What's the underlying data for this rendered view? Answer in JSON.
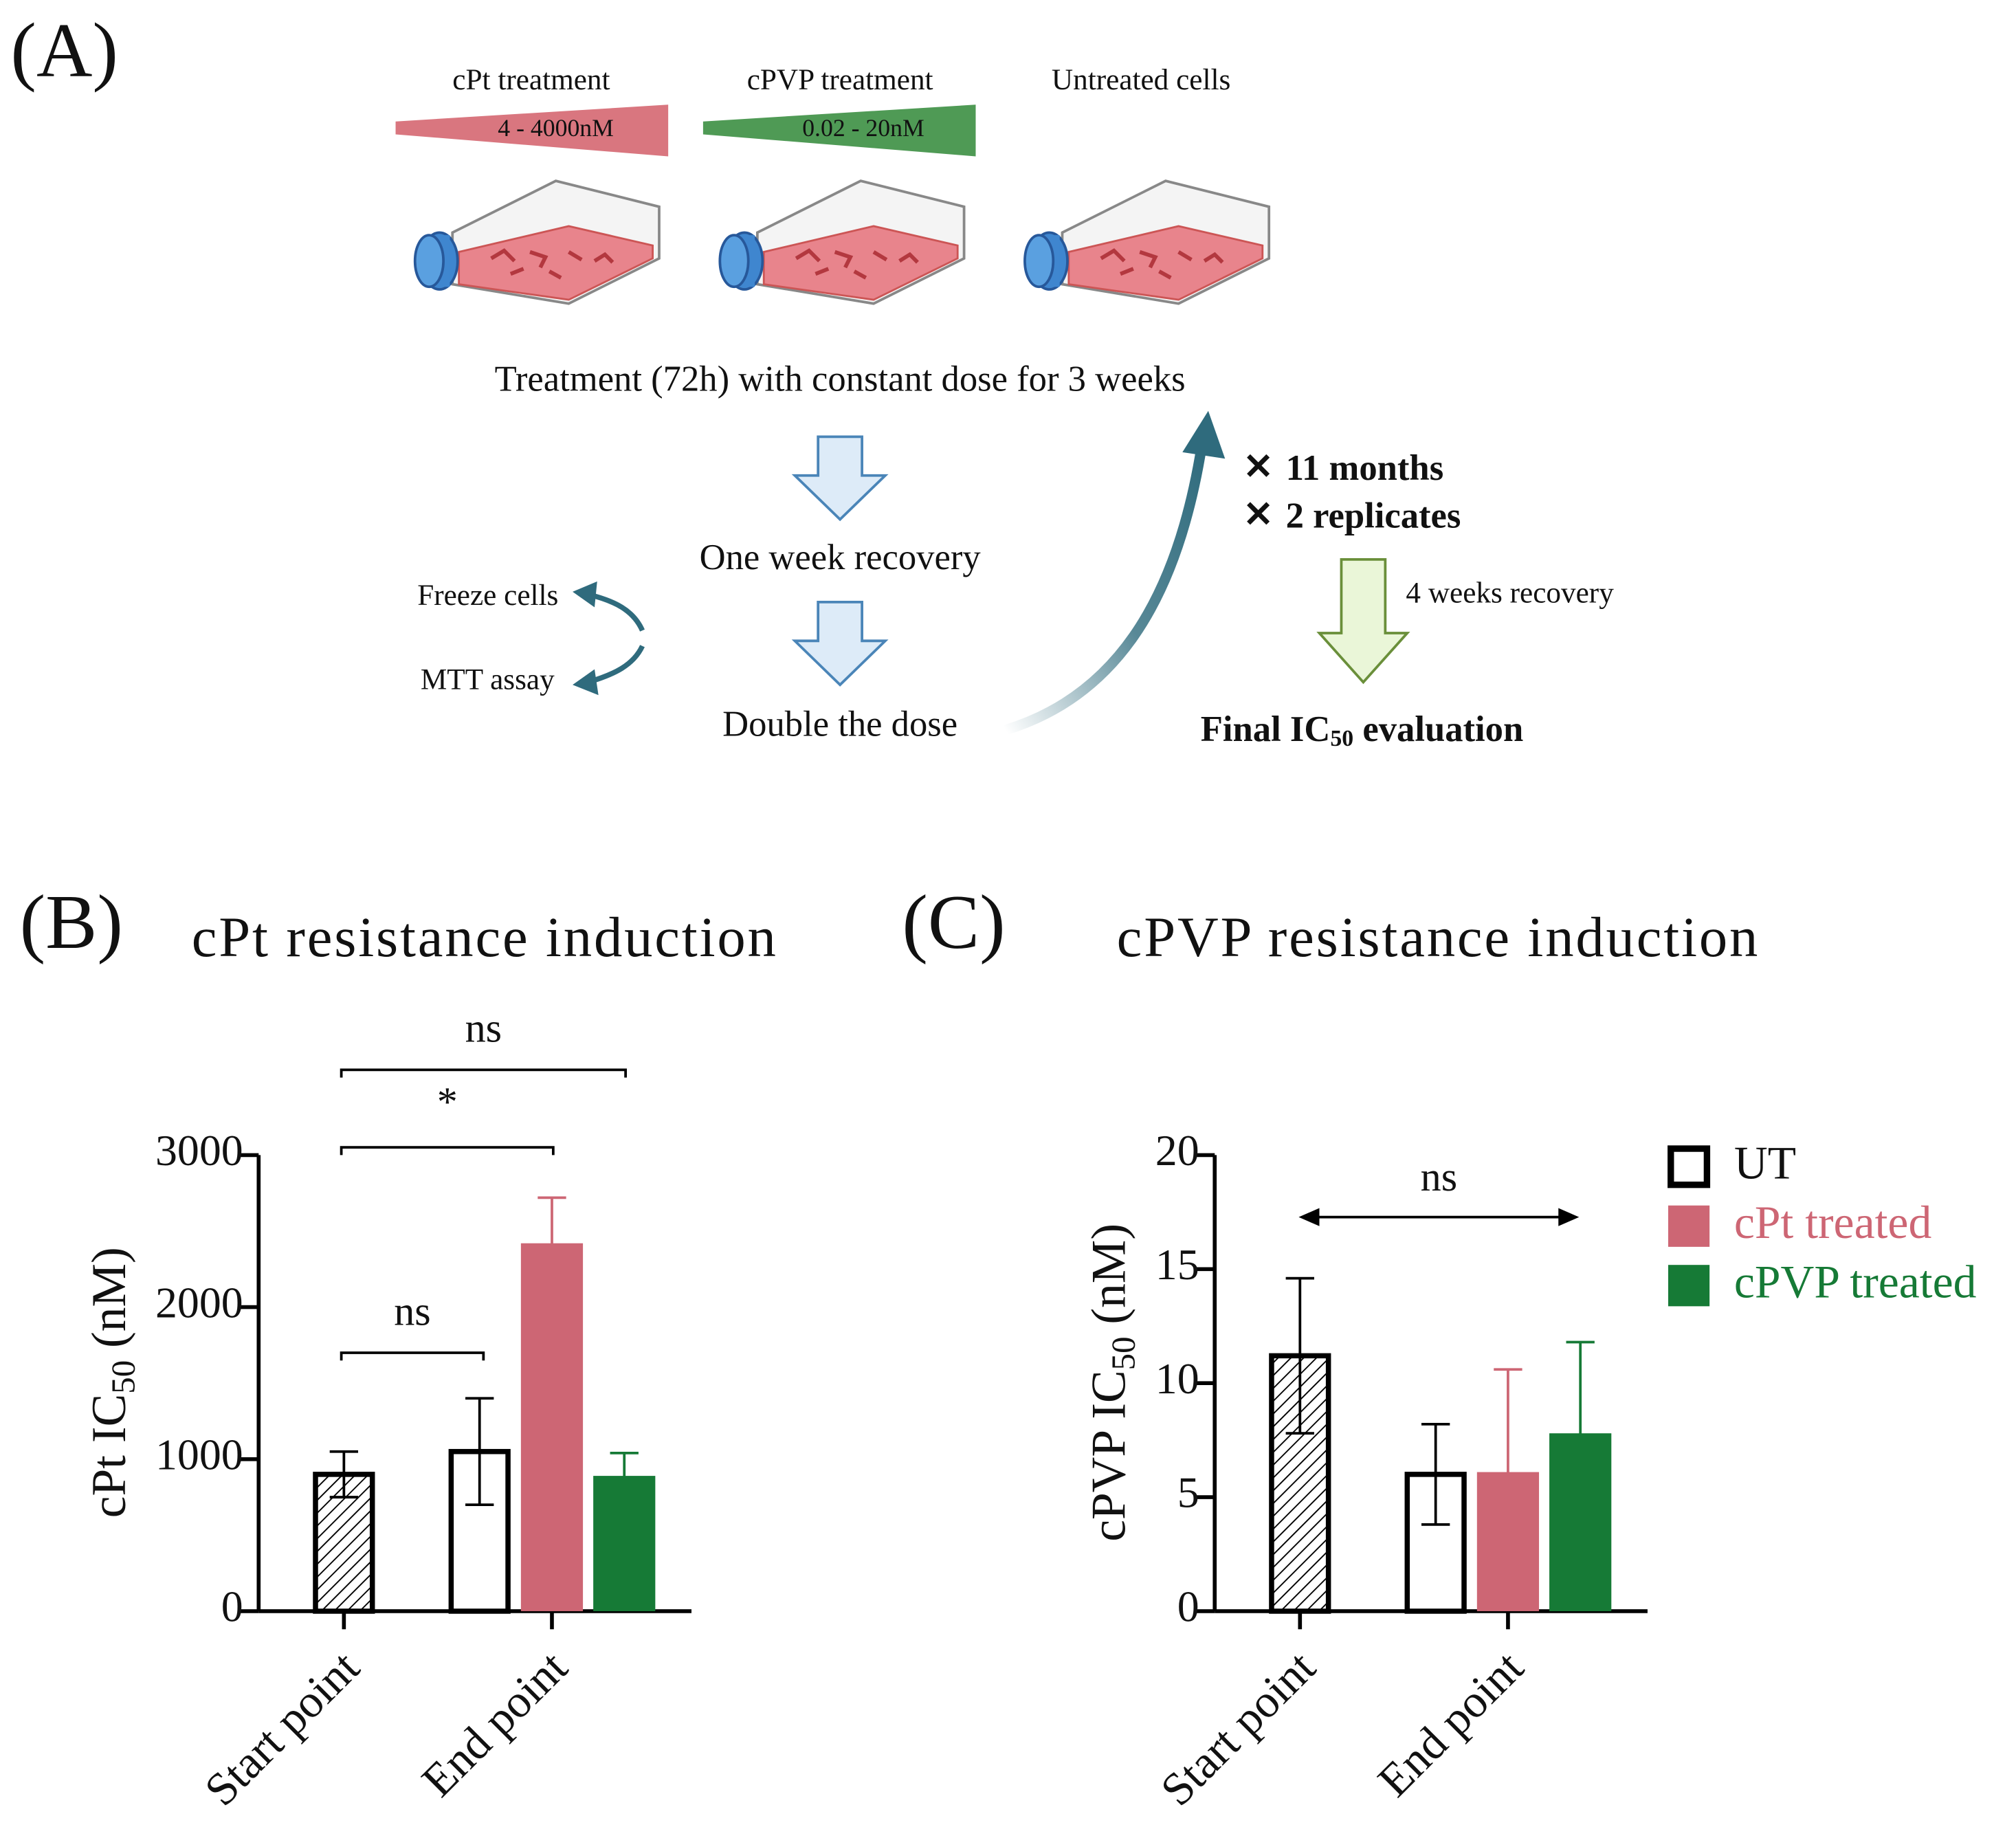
{
  "diagram": {
    "panel": "(A)",
    "treatments": [
      {
        "name": "cPt treatment",
        "range": "4 - 4000nM"
      },
      {
        "name": "cPVP treatment",
        "range": "0.02 - 20nM"
      },
      {
        "name": "Untreated cells"
      }
    ],
    "step_treatment": "Treatment (72h) with constant dose for 3 weeks",
    "step_recovery": "One week recovery",
    "step_double": "Double the dose",
    "side_steps": [
      "Freeze cells",
      "MTT assay"
    ],
    "repeats": [
      "11 months",
      "2 replicates"
    ],
    "final_recovery": "4 weeks recovery",
    "final": {
      "text": "Final IC",
      "sub": "50",
      "rest": " evaluation"
    }
  },
  "chart_data": [
    {
      "type": "bar",
      "panel": "(B)",
      "title": "cPt resistance induction",
      "ylabel": {
        "text": "cPt IC",
        "sub": "50",
        "unit": " (nM)"
      },
      "categories": [
        "Start point",
        "End point"
      ],
      "ylim": [
        0,
        3000
      ],
      "yticks": [
        0,
        1000,
        2000,
        3000
      ],
      "hatched_categories": [
        0
      ],
      "series": [
        {
          "name": "UT",
          "color": "#000000",
          "fill": "none",
          "values": [
            900,
            1050
          ],
          "errors": [
            150,
            350
          ]
        },
        {
          "name": "cPt treated",
          "color": "#cd6674",
          "values": [
            null,
            2420
          ],
          "errors": [
            null,
            300
          ]
        },
        {
          "name": "cPVP treated",
          "color": "#167a36",
          "values": [
            null,
            890
          ],
          "errors": [
            null,
            150
          ]
        }
      ],
      "annotations": [
        "ns",
        "*",
        "ns"
      ]
    },
    {
      "type": "bar",
      "panel": "(C)",
      "title": "cPVP resistance induction",
      "ylabel": {
        "text": "cPVP IC",
        "sub": "50",
        "unit": " (nM)"
      },
      "categories": [
        "Start point",
        "End point"
      ],
      "ylim": [
        0,
        20
      ],
      "yticks": [
        0,
        5,
        10,
        15,
        20
      ],
      "hatched_categories": [
        0
      ],
      "legend": "right",
      "series": [
        {
          "name": "UT",
          "color": "#000000",
          "fill": "none",
          "values": [
            11.2,
            6.0
          ],
          "errors": [
            3.4,
            2.2
          ]
        },
        {
          "name": "cPt treated",
          "color": "#cd6674",
          "values": [
            null,
            6.1
          ],
          "errors": [
            null,
            4.5
          ]
        },
        {
          "name": "cPVP treated",
          "color": "#167a36",
          "values": [
            null,
            7.8
          ],
          "errors": [
            null,
            4.0
          ]
        }
      ],
      "annotations": [
        "ns"
      ]
    }
  ]
}
